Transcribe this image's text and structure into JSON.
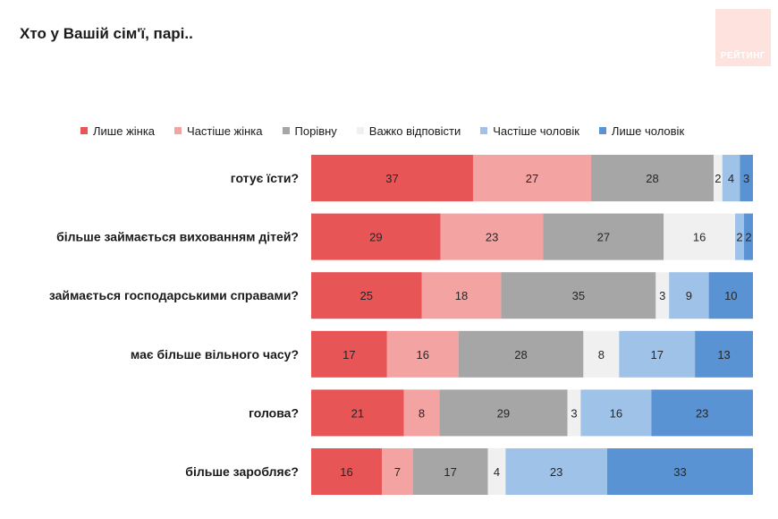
{
  "page": {
    "title": "Хто у Вашій сім'ї, парі..",
    "logo_text": "РЕЙТИНГ"
  },
  "chart_data": {
    "type": "bar",
    "orientation": "horizontal",
    "stacked": true,
    "title": "Хто у Вашій сім'ї, парі..",
    "categories": [
      "готує їсти?",
      "більше займається вихованням дітей?",
      "займається господарськими справами?",
      "має більше вільного часу?",
      "голова?",
      "більше заробляє?"
    ],
    "series": [
      {
        "name": "Лише жінка",
        "color": "#e85557",
        "values": [
          37,
          29,
          25,
          17,
          21,
          16
        ]
      },
      {
        "name": "Частіше  жінка",
        "color": "#f4a3a3",
        "values": [
          27,
          23,
          18,
          16,
          8,
          7
        ]
      },
      {
        "name": "Порівну",
        "color": "#a6a6a6",
        "values": [
          28,
          27,
          35,
          28,
          29,
          17
        ]
      },
      {
        "name": "Важко відповісти",
        "color": "#f0f0f0",
        "values": [
          2,
          16,
          3,
          8,
          3,
          4
        ]
      },
      {
        "name": "Частіше  чоловік",
        "color": "#9fc3e8",
        "values": [
          4,
          2,
          9,
          17,
          16,
          23
        ]
      },
      {
        "name": "Лише чоловік",
        "color": "#5a93d4",
        "values": [
          3,
          2,
          10,
          13,
          23,
          33
        ]
      }
    ],
    "legend_position": "top",
    "grid": false
  }
}
